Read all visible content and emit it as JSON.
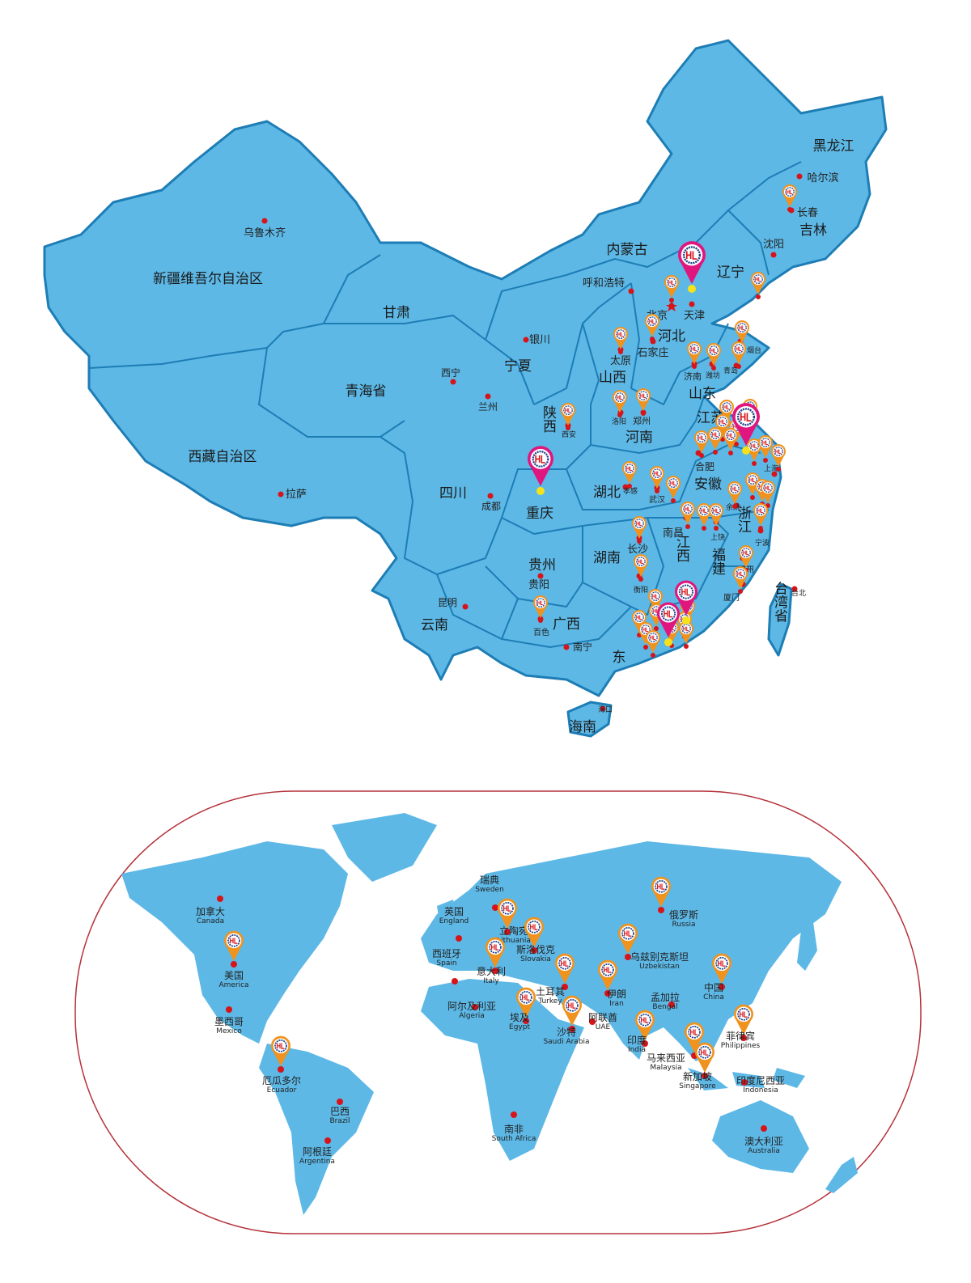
{
  "colors": {
    "land": "#5db8e6",
    "border": "#1d7db5",
    "marker": "#f0931e",
    "marker_hq": "#e0167f",
    "city_dot": "#d7141a",
    "hq_dot": "#f5e21a",
    "frame": "#b5313a"
  },
  "marker_logo": "HL",
  "china": {
    "provinces": [
      "黑龙江",
      "吉林",
      "辽宁",
      "内蒙古",
      "新疆维吾尔自治区",
      "甘肃",
      "宁夏",
      "青海省",
      "西藏自治区",
      "四川",
      "重庆",
      "陕西",
      "山西",
      "河北",
      "山东",
      "河南",
      "湖北",
      "安徽",
      "江苏",
      "浙江",
      "江西",
      "湖南",
      "贵州",
      "云南",
      "广西",
      "东",
      "福建",
      "台湾省",
      "海南"
    ],
    "cities": [
      "乌鲁木齐",
      "哈尔滨",
      "长春",
      "沈阳",
      "呼和浩特",
      "北京",
      "天津",
      "石家庄",
      "太原",
      "银川",
      "西宁",
      "兰州",
      "济南",
      "潍坊",
      "青岛",
      "烟台",
      "郑州",
      "洛阳",
      "西安",
      "成都",
      "拉萨",
      "武汉",
      "孝感",
      "南昌",
      "长沙",
      "衡阳",
      "贵阳",
      "昆明",
      "南宁",
      "百色",
      "福州",
      "厦门",
      "宁波",
      "合肥",
      "上海",
      "海口",
      "台北",
      "余姚",
      "上饶"
    ]
  },
  "world": {
    "countries": [
      {
        "zh": "加拿大",
        "en": "Canada",
        "marker": false
      },
      {
        "zh": "美国",
        "en": "America",
        "marker": true
      },
      {
        "zh": "墨西哥",
        "en": "Mexico",
        "marker": false
      },
      {
        "zh": "厄瓜多尔",
        "en": "Ecuador",
        "marker": true
      },
      {
        "zh": "巴西",
        "en": "Brazil",
        "marker": false
      },
      {
        "zh": "阿根廷",
        "en": "Argentina",
        "marker": false
      },
      {
        "zh": "瑞典",
        "en": "Sweden",
        "marker": false
      },
      {
        "zh": "英国",
        "en": "England",
        "marker": false
      },
      {
        "zh": "立陶宛",
        "en": "Lithuania",
        "marker": true
      },
      {
        "zh": "斯洛伐克",
        "en": "Slovakia",
        "marker": true
      },
      {
        "zh": "西班牙",
        "en": "Spain",
        "marker": false
      },
      {
        "zh": "意大利",
        "en": "Italy",
        "marker": true
      },
      {
        "zh": "土耳其",
        "en": "Turkey",
        "marker": true
      },
      {
        "zh": "阿尔及利亚",
        "en": "Algeria",
        "marker": false
      },
      {
        "zh": "埃及",
        "en": "Egypt",
        "marker": true
      },
      {
        "zh": "沙特",
        "en": "Saudi Arabia",
        "marker": true
      },
      {
        "zh": "阿联酋",
        "en": "UAE",
        "marker": false
      },
      {
        "zh": "伊朗",
        "en": "Iran",
        "marker": true
      },
      {
        "zh": "乌兹别克斯坦",
        "en": "Uzbekistan",
        "marker": true
      },
      {
        "zh": "俄罗斯",
        "en": "Russia",
        "marker": true
      },
      {
        "zh": "中国",
        "en": "China",
        "marker": true
      },
      {
        "zh": "孟加拉",
        "en": "Bengal",
        "marker": false
      },
      {
        "zh": "印度",
        "en": "India",
        "marker": true
      },
      {
        "zh": "马来西亚",
        "en": "Malaysia",
        "marker": true
      },
      {
        "zh": "新加坡",
        "en": "Singapore",
        "marker": true
      },
      {
        "zh": "菲律宾",
        "en": "Philippines",
        "marker": true
      },
      {
        "zh": "印度尼西亚",
        "en": "Indonesia",
        "marker": false
      },
      {
        "zh": "南非",
        "en": "South Africa",
        "marker": false
      },
      {
        "zh": "澳大利亚",
        "en": "Australia",
        "marker": false
      }
    ]
  }
}
